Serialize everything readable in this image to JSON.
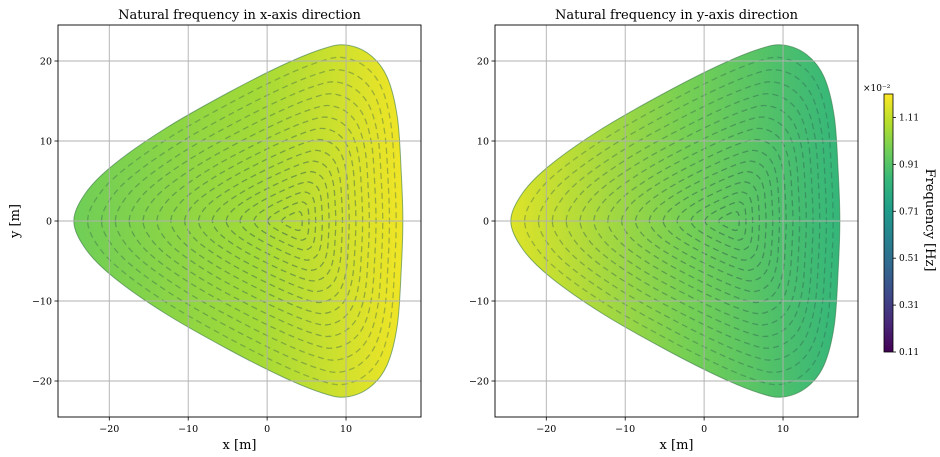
{
  "chart_data": [
    {
      "type": "heatmap",
      "title": "Natural frequency in x-axis direction",
      "xlabel": "x [m]",
      "ylabel": "y [m]",
      "xlim": [
        -26.5,
        19.5
      ],
      "ylim": [
        -24.5,
        24.5
      ],
      "xticks": [
        -20,
        -10,
        0,
        10
      ],
      "yticks": [
        -20,
        -10,
        0,
        10,
        20
      ],
      "xtick_labels": [
        "−20",
        "−10",
        "0",
        "10"
      ],
      "ytick_labels": [
        "−20",
        "−10",
        "0",
        "10",
        "20"
      ],
      "grid": true,
      "domain_outline": [
        [
          -24.5,
          0
        ],
        [
          -23,
          3.5
        ],
        [
          -19.5,
          7
        ],
        [
          -13,
          11.5
        ],
        [
          -5,
          16
        ],
        [
          2,
          19.5
        ],
        [
          7,
          21.5
        ],
        [
          10,
          22
        ],
        [
          13,
          20.8
        ],
        [
          15.2,
          18
        ],
        [
          16.5,
          13
        ],
        [
          17,
          6
        ],
        [
          17.2,
          0
        ],
        [
          17,
          -6
        ],
        [
          16.5,
          -13
        ],
        [
          15.2,
          -18
        ],
        [
          13,
          -20.8
        ],
        [
          10,
          -22
        ],
        [
          7,
          -21.5
        ],
        [
          2,
          -19.5
        ],
        [
          -5,
          -16
        ],
        [
          -13,
          -11.5
        ],
        [
          -19.5,
          -7
        ],
        [
          -23,
          -3.5
        ]
      ],
      "color_gradient": {
        "direction": "x",
        "from": [
          -24.5,
          0.78
        ],
        "to": [
          17.2,
          0.98
        ]
      },
      "contour_levels": 16,
      "contour_center": [
        1.5,
        0
      ]
    },
    {
      "type": "heatmap",
      "title": "Natural frequency in y-axis direction",
      "xlabel": "x [m]",
      "ylabel": "",
      "xlim": [
        -26.5,
        19.5
      ],
      "ylim": [
        -24.5,
        24.5
      ],
      "xticks": [
        -20,
        -10,
        0,
        10
      ],
      "yticks": [
        -20,
        -10,
        0,
        10,
        20
      ],
      "xtick_labels": [
        "−20",
        "−10",
        "0",
        "10"
      ],
      "ytick_labels": [
        "−20",
        "−10",
        "0",
        "10",
        "20"
      ],
      "grid": true,
      "domain_outline": [
        [
          -24.5,
          0
        ],
        [
          -23,
          3.5
        ],
        [
          -19.5,
          7
        ],
        [
          -13,
          11.5
        ],
        [
          -5,
          16
        ],
        [
          2,
          19.5
        ],
        [
          7,
          21.5
        ],
        [
          10,
          22
        ],
        [
          13,
          20.8
        ],
        [
          15.2,
          18
        ],
        [
          16.5,
          13
        ],
        [
          17,
          6
        ],
        [
          17.2,
          0
        ],
        [
          17,
          -6
        ],
        [
          16.5,
          -13
        ],
        [
          15.2,
          -18
        ],
        [
          13,
          -20.8
        ],
        [
          10,
          -22
        ],
        [
          7,
          -21.5
        ],
        [
          2,
          -19.5
        ],
        [
          -5,
          -16
        ],
        [
          -13,
          -11.5
        ],
        [
          -19.5,
          -7
        ],
        [
          -23,
          -3.5
        ]
      ],
      "color_gradient": {
        "direction": "x",
        "from": [
          -24.5,
          0.95
        ],
        "to": [
          17.2,
          0.66
        ]
      },
      "contour_levels": 16,
      "contour_center": [
        1.5,
        0
      ]
    }
  ],
  "colorbar": {
    "label": "Frequency [Hz]",
    "scale_label": "×10⁻²",
    "vmin": 0.11,
    "vmax": 1.21,
    "ticks": [
      0.11,
      0.31,
      0.51,
      0.71,
      0.91,
      1.11
    ],
    "tick_labels": [
      "0.11",
      "0.31",
      "0.51",
      "0.71",
      "0.91",
      "1.11"
    ],
    "colormap": "viridis",
    "colormap_stops": [
      "#440154",
      "#482878",
      "#3e4989",
      "#31688e",
      "#26828e",
      "#1f9e89",
      "#35b779",
      "#6ece58",
      "#b5de2b",
      "#fde725"
    ]
  }
}
